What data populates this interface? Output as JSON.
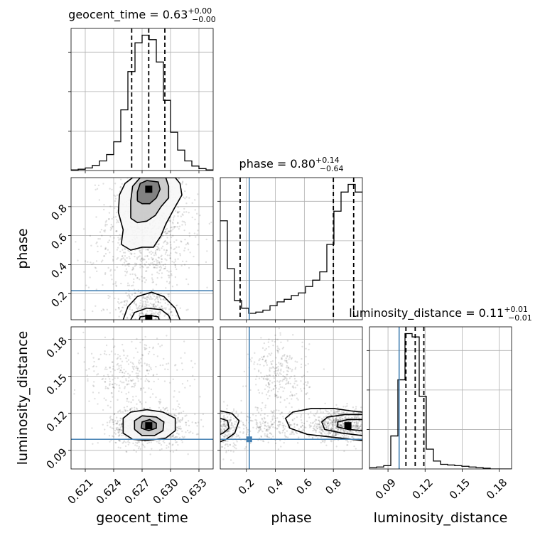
{
  "chart_data": {
    "type": "corner",
    "parameters": [
      "geocent_time",
      "phase",
      "luminosity_distance"
    ],
    "axis_labels": {
      "geocent_time": "geocent_time",
      "phase": "phase",
      "luminosity_distance": "luminosity_distance"
    },
    "ranges": {
      "geocent_time": [
        0.6195,
        0.6345
      ],
      "phase": [
        0.02,
        1.0
      ],
      "luminosity_distance": [
        0.075,
        0.19
      ]
    },
    "ticks": {
      "geocent_time": {
        "values": [
          0.621,
          0.624,
          0.627,
          0.63,
          0.633
        ],
        "labels": [
          "0.621",
          "0.624",
          "0.627",
          "0.630",
          "0.633"
        ]
      },
      "phase": {
        "values": [
          0.2,
          0.4,
          0.6,
          0.8
        ],
        "labels": [
          "0.2",
          "0.4",
          "0.6",
          "0.8"
        ]
      },
      "luminosity_distance": {
        "values": [
          0.09,
          0.12,
          0.15,
          0.18
        ],
        "labels": [
          "0.09",
          "0.12",
          "0.15",
          "0.18"
        ]
      }
    },
    "titles": [
      {
        "param": "geocent_time",
        "prefix": "geocent_time = 0.63",
        "plus": "+0.00",
        "minus": "−0.00"
      },
      {
        "param": "phase",
        "prefix": "phase = 0.80",
        "plus": "+0.14",
        "minus": "−0.64"
      },
      {
        "param": "luminosity_distance",
        "prefix": "luminosity_distance = 0.11",
        "plus": "+0.01",
        "minus": "−0.01"
      }
    ],
    "truths": {
      "geocent_time": null,
      "phase": 0.22,
      "luminosity_distance": 0.099
    },
    "quantiles": {
      "geocent_time": [
        0.6259,
        0.6277,
        0.6294
      ],
      "phase": [
        0.157,
        0.8,
        0.94
      ],
      "luminosity_distance": [
        0.1045,
        0.112,
        0.119
      ]
    },
    "histograms": {
      "geocent_time": {
        "edges_start": 0.6195,
        "bin_width": 0.00075,
        "counts": [
          1,
          2,
          4,
          8,
          15,
          25,
          45,
          95,
          155,
          200,
          212,
          205,
          170,
          110,
          60,
          32,
          15,
          7,
          3,
          1
        ]
      },
      "phase": {
        "edges_start": 0.02,
        "bin_width": 0.049,
        "counts": [
          155,
          80,
          30,
          18,
          10,
          12,
          15,
          22,
          28,
          32,
          38,
          42,
          52,
          62,
          75,
          118,
          170,
          200,
          212,
          200
        ]
      },
      "luminosity_distance": {
        "edges_start": 0.075,
        "bin_width": 0.00575,
        "counts": [
          2,
          3,
          5,
          50,
          135,
          205,
          200,
          110,
          30,
          12,
          7,
          6,
          5,
          4,
          3,
          2,
          1,
          0,
          0,
          0
        ]
      }
    },
    "contours_2d": [
      {
        "x": "geocent_time",
        "y": "phase",
        "peak": [
          0.6277,
          0.92
        ],
        "levels": [
          [
            [
              0.6248,
              0.54
            ],
            [
              0.625,
              0.64
            ],
            [
              0.6245,
              0.76
            ],
            [
              0.6246,
              0.88
            ],
            [
              0.6252,
              0.96
            ],
            [
              0.626,
              1.0
            ],
            [
              0.6305,
              1.0
            ],
            [
              0.631,
              0.96
            ],
            [
              0.6312,
              0.88
            ],
            [
              0.6305,
              0.8
            ],
            [
              0.63,
              0.74
            ],
            [
              0.6295,
              0.68
            ],
            [
              0.629,
              0.6
            ],
            [
              0.6282,
              0.52
            ],
            [
              0.627,
              0.52
            ],
            [
              0.6258,
              0.5
            ],
            [
              0.6248,
              0.54
            ]
          ],
          [
            [
              0.6258,
              0.72
            ],
            [
              0.6258,
              0.84
            ],
            [
              0.626,
              0.94
            ],
            [
              0.6268,
              1.0
            ],
            [
              0.6295,
              1.0
            ],
            [
              0.6298,
              0.94
            ],
            [
              0.6298,
              0.86
            ],
            [
              0.629,
              0.8
            ],
            [
              0.6284,
              0.74
            ],
            [
              0.6275,
              0.7
            ],
            [
              0.6265,
              0.69
            ],
            [
              0.6258,
              0.72
            ]
          ],
          [
            [
              0.6265,
              0.84
            ],
            [
              0.6265,
              0.9
            ],
            [
              0.6268,
              0.96
            ],
            [
              0.6275,
              0.98
            ],
            [
              0.6287,
              0.97
            ],
            [
              0.6289,
              0.92
            ],
            [
              0.6285,
              0.86
            ],
            [
              0.6278,
              0.82
            ],
            [
              0.627,
              0.82
            ],
            [
              0.6265,
              0.84
            ]
          ]
        ]
      },
      {
        "x": "geocent_time",
        "y": "phase",
        "peak": [
          0.6277,
          0.03
        ],
        "levels": [
          [
            [
              0.625,
              0.02
            ],
            [
              0.6255,
              0.11
            ],
            [
              0.6265,
              0.18
            ],
            [
              0.628,
              0.21
            ],
            [
              0.6293,
              0.18
            ],
            [
              0.6305,
              0.1
            ],
            [
              0.631,
              0.02
            ]
          ],
          [
            [
              0.6258,
              0.02
            ],
            [
              0.6262,
              0.07
            ],
            [
              0.6275,
              0.1
            ],
            [
              0.629,
              0.09
            ],
            [
              0.6298,
              0.05
            ],
            [
              0.63,
              0.02
            ]
          ],
          [
            [
              0.6267,
              0.02
            ],
            [
              0.6268,
              0.04
            ],
            [
              0.6278,
              0.05
            ],
            [
              0.6287,
              0.04
            ],
            [
              0.6288,
              0.02
            ]
          ]
        ]
      },
      {
        "x": "geocent_time",
        "y": "luminosity_distance",
        "peak": [
          0.6277,
          0.11
        ],
        "levels": [
          [
            [
              0.625,
              0.104
            ],
            [
              0.625,
              0.116
            ],
            [
              0.6258,
              0.121
            ],
            [
              0.6275,
              0.123
            ],
            [
              0.6292,
              0.121
            ],
            [
              0.6305,
              0.116
            ],
            [
              0.6305,
              0.106
            ],
            [
              0.6295,
              0.1
            ],
            [
              0.6275,
              0.098
            ],
            [
              0.626,
              0.099
            ],
            [
              0.625,
              0.104
            ]
          ],
          [
            [
              0.6262,
              0.107
            ],
            [
              0.6262,
              0.114
            ],
            [
              0.627,
              0.118
            ],
            [
              0.6285,
              0.117
            ],
            [
              0.6293,
              0.113
            ],
            [
              0.6292,
              0.106
            ],
            [
              0.6283,
              0.102
            ],
            [
              0.627,
              0.102
            ],
            [
              0.6262,
              0.107
            ]
          ],
          [
            [
              0.6269,
              0.108
            ],
            [
              0.627,
              0.113
            ],
            [
              0.6278,
              0.115
            ],
            [
              0.6285,
              0.112
            ],
            [
              0.6285,
              0.108
            ],
            [
              0.6277,
              0.106
            ],
            [
              0.6269,
              0.108
            ]
          ]
        ]
      },
      {
        "x": "phase",
        "y": "luminosity_distance",
        "peak": [
          0.9,
          0.11
        ],
        "levels": [
          [
            [
              1.0,
              0.098
            ],
            [
              0.85,
              0.1
            ],
            [
              0.62,
              0.103
            ],
            [
              0.5,
              0.108
            ],
            [
              0.47,
              0.116
            ],
            [
              0.52,
              0.121
            ],
            [
              0.65,
              0.124
            ],
            [
              0.8,
              0.124
            ],
            [
              0.92,
              0.122
            ],
            [
              1.0,
              0.121
            ]
          ],
          [
            [
              1.0,
              0.102
            ],
            [
              0.86,
              0.104
            ],
            [
              0.74,
              0.107
            ],
            [
              0.72,
              0.113
            ],
            [
              0.76,
              0.117
            ],
            [
              0.88,
              0.119
            ],
            [
              1.0,
              0.119
            ]
          ],
          [
            [
              1.0,
              0.106
            ],
            [
              0.9,
              0.107
            ],
            [
              0.83,
              0.109
            ],
            [
              0.83,
              0.113
            ],
            [
              0.9,
              0.115
            ],
            [
              1.0,
              0.115
            ]
          ],
          [
            [
              0.02,
              0.122
            ],
            [
              0.1,
              0.12
            ],
            [
              0.15,
              0.114
            ],
            [
              0.12,
              0.104
            ],
            [
              0.06,
              0.099
            ],
            [
              0.02,
              0.097
            ]
          ],
          [
            [
              0.02,
              0.116
            ],
            [
              0.07,
              0.114
            ],
            [
              0.08,
              0.108
            ],
            [
              0.04,
              0.104
            ],
            [
              0.02,
              0.103
            ]
          ]
        ]
      }
    ],
    "scatter_clouds": [
      {
        "x": "geocent_time",
        "y": "phase",
        "blobs": [
          [
            0.6277,
            0.72,
            0.0022,
            0.2,
            900
          ],
          [
            0.6277,
            0.1,
            0.0018,
            0.06,
            250
          ],
          [
            0.627,
            0.42,
            0.003,
            0.14,
            250
          ]
        ]
      },
      {
        "x": "geocent_time",
        "y": "luminosity_distance",
        "blobs": [
          [
            0.6277,
            0.11,
            0.002,
            0.008,
            900
          ],
          [
            0.6255,
            0.152,
            0.003,
            0.014,
            300
          ]
        ]
      },
      {
        "x": "phase",
        "y": "luminosity_distance",
        "blobs": [
          [
            0.85,
            0.11,
            0.12,
            0.006,
            700
          ],
          [
            0.06,
            0.108,
            0.05,
            0.008,
            250
          ],
          [
            0.43,
            0.15,
            0.1,
            0.016,
            300
          ],
          [
            0.35,
            0.108,
            0.12,
            0.006,
            200
          ]
        ]
      }
    ]
  }
}
